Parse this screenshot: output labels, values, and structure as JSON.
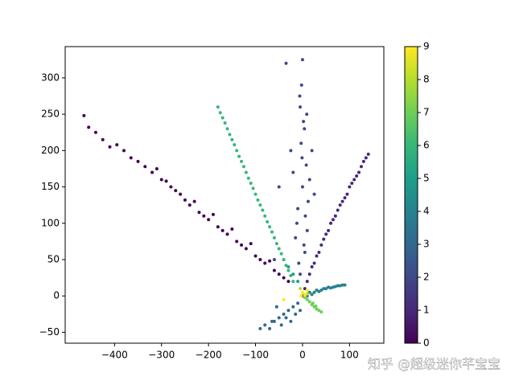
{
  "chart_data": {
    "type": "scatter",
    "xlim": [
      -505,
      173
    ],
    "ylim": [
      -65,
      343
    ],
    "xticks": [
      {
        "value": -400,
        "label": "−400"
      },
      {
        "value": -300,
        "label": "−300"
      },
      {
        "value": -200,
        "label": "−200"
      },
      {
        "value": -100,
        "label": "−100"
      },
      0,
      100
    ],
    "yticks": [
      {
        "value": -50,
        "label": "−50"
      },
      0,
      50,
      100,
      150,
      200,
      250,
      300
    ],
    "colorbar": {
      "lim": [
        0,
        9
      ],
      "ticks": [
        0,
        1,
        2,
        3,
        4,
        5,
        6,
        7,
        8,
        9
      ]
    },
    "series": [
      {
        "color": "#440154",
        "x": [
          -465,
          -455,
          -440,
          -425,
          -410,
          -395,
          -380,
          -365,
          -350,
          -335,
          -320,
          -310,
          -300,
          -290,
          -280,
          -270,
          -260,
          -250,
          -240,
          -230,
          -220,
          -210,
          -200,
          -190,
          -180,
          -170,
          -160,
          -150,
          -140,
          -130,
          -120,
          -110,
          -100,
          -90,
          -80,
          -70,
          -60,
          -50,
          -40,
          -30
        ],
        "y": [
          248,
          232,
          225,
          215,
          205,
          208,
          200,
          190,
          185,
          178,
          170,
          175,
          160,
          158,
          150,
          145,
          140,
          132,
          125,
          130,
          115,
          110,
          105,
          112,
          95,
          90,
          85,
          92,
          75,
          70,
          65,
          72,
          55,
          50,
          45,
          48,
          35,
          30,
          25,
          20
        ]
      },
      {
        "color": "#482878",
        "x": [
          5,
          10,
          15,
          20,
          25,
          30,
          35,
          40,
          45,
          50,
          55,
          60,
          65,
          70,
          75,
          80,
          85,
          90,
          95,
          100,
          105,
          110,
          115,
          120,
          125,
          130,
          135,
          140
        ],
        "y": [
          10,
          20,
          30,
          40,
          45,
          55,
          60,
          70,
          78,
          85,
          90,
          100,
          105,
          110,
          118,
          125,
          130,
          135,
          140,
          150,
          155,
          160,
          165,
          170,
          178,
          185,
          190,
          195
        ]
      },
      {
        "color": "#3e4989",
        "x": [
          0,
          -5,
          5,
          10,
          -10,
          0,
          8,
          -3,
          2,
          -20,
          20,
          -5,
          0,
          -35,
          -2,
          -12,
          12,
          3,
          -8,
          6,
          -15,
          15,
          -25,
          25,
          -1,
          4,
          -6,
          9,
          -50,
          -60
        ],
        "y": [
          0,
          30,
          60,
          90,
          120,
          150,
          180,
          210,
          240,
          170,
          200,
          260,
          325,
          320,
          290,
          100,
          130,
          70,
          45,
          110,
          80,
          160,
          200,
          140,
          190,
          230,
          275,
          250,
          150,
          50
        ]
      },
      {
        "color": "#31688e",
        "x": [
          -90,
          -80,
          -70,
          -65,
          -60,
          -55,
          -50,
          -45,
          -40,
          -35,
          -30,
          -25,
          -20,
          -15,
          -10,
          -5
        ],
        "y": [
          -45,
          -40,
          -45,
          -35,
          -35,
          -15,
          -30,
          -40,
          -25,
          -30,
          -20,
          -35,
          -15,
          -25,
          -10,
          -20
        ]
      },
      {
        "color": "#26828e",
        "x": [
          5,
          10,
          15,
          20,
          25,
          30,
          35,
          40,
          45,
          50,
          55,
          60,
          65,
          70,
          75,
          80,
          85,
          90
        ],
        "y": [
          -2,
          0,
          5,
          2,
          5,
          8,
          6,
          8,
          10,
          10,
          12,
          11,
          12,
          13,
          14,
          14,
          15,
          15
        ]
      },
      {
        "color": "#1f9e89",
        "x": [
          -40,
          -30,
          -20,
          -10
        ],
        "y": [
          50,
          40,
          30,
          20
        ]
      },
      {
        "color": "#35b779",
        "x": [
          -180,
          -175,
          -170,
          -165,
          -160,
          -155,
          -150,
          -145,
          -140,
          -135,
          -130,
          -125,
          -120,
          -115,
          -110,
          -105,
          -100,
          -95,
          -90,
          -85,
          -80,
          -75,
          -70,
          -65,
          -60,
          -55,
          -50,
          -45,
          -40,
          -35,
          -30,
          -25,
          -20
        ],
        "y": [
          260,
          252,
          245,
          238,
          230,
          222,
          215,
          208,
          200,
          192,
          185,
          178,
          170,
          162,
          155,
          148,
          140,
          132,
          125,
          118,
          110,
          102,
          95,
          88,
          80,
          72,
          65,
          58,
          50,
          42,
          35,
          28,
          20
        ]
      },
      {
        "color": "#6ece58",
        "x": [
          5,
          10,
          15,
          20,
          25,
          30,
          35,
          40,
          22,
          28
        ],
        "y": [
          -2,
          -5,
          -8,
          -12,
          -15,
          -18,
          -20,
          -22,
          -10,
          -14
        ]
      },
      {
        "color": "#b5de2b",
        "x": [
          -5,
          0,
          5,
          10
        ],
        "y": [
          10,
          5,
          0,
          3
        ]
      },
      {
        "color": "#fde725",
        "x": [
          -40,
          0,
          5,
          10,
          -3
        ],
        "y": [
          -5,
          5,
          2,
          8,
          0
        ]
      }
    ]
  },
  "watermark": "知乎 @超级迷你芊宝宝"
}
